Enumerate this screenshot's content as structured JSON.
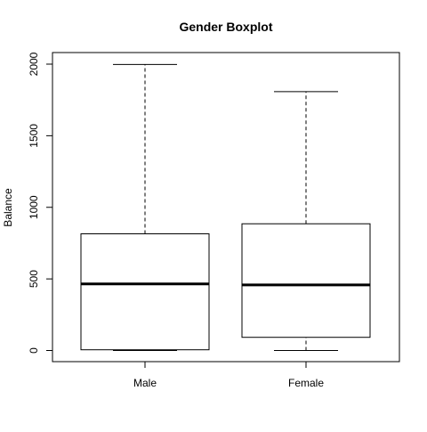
{
  "chart_data": {
    "type": "boxplot",
    "title": "Gender Boxplot",
    "xlabel": "",
    "ylabel": "Balance",
    "ylim": [
      -80,
      2080
    ],
    "yticks": [
      0,
      500,
      1000,
      1500,
      2000
    ],
    "ytick_labels": [
      "0",
      "500",
      "1000",
      "1500",
      "2000"
    ],
    "grid": false,
    "categories": [
      "Male",
      "Female"
    ],
    "boxes": [
      {
        "category": "Male",
        "min": 0,
        "q1": 5,
        "median": 465,
        "q3": 815,
        "max": 1998
      },
      {
        "category": "Female",
        "min": 0,
        "q1": 92,
        "median": 458,
        "q3": 885,
        "max": 1808
      }
    ]
  }
}
